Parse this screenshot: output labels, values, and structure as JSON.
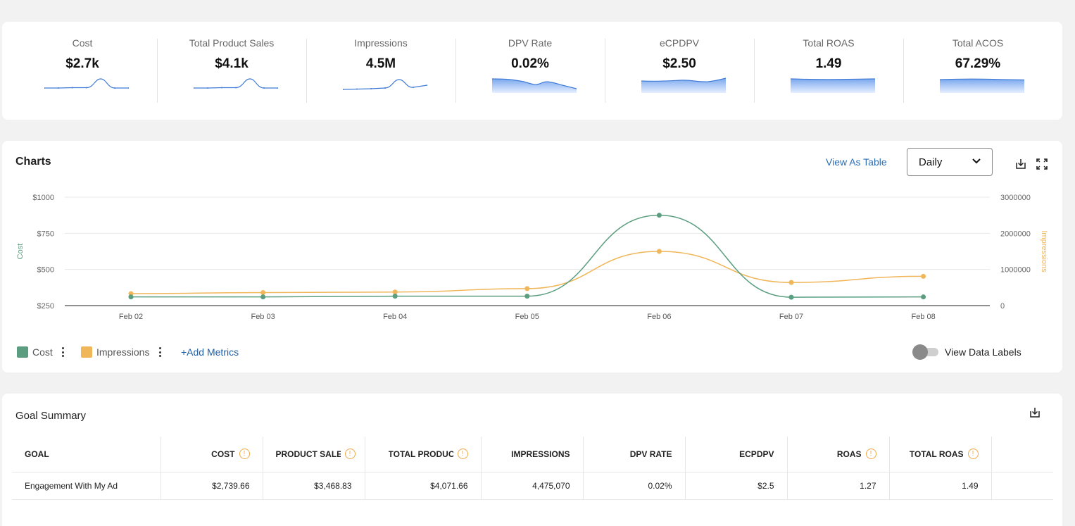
{
  "kpis": [
    {
      "label": "Cost",
      "value": "$2.7k",
      "spark": "peak"
    },
    {
      "label": "Total Product Sales",
      "value": "$4.1k",
      "spark": "peak"
    },
    {
      "label": "Impressions",
      "value": "4.5M",
      "spark": "peak"
    },
    {
      "label": "DPV Rate",
      "value": "0.02%",
      "spark": "area"
    },
    {
      "label": "eCPDPV",
      "value": "$2.50",
      "spark": "area"
    },
    {
      "label": "Total ROAS",
      "value": "1.49",
      "spark": "area"
    },
    {
      "label": "Total ACOS",
      "value": "67.29%",
      "spark": "area"
    }
  ],
  "charts": {
    "title": "Charts",
    "view_as_table": "View As Table",
    "granularity": "Daily",
    "download_icon": "download-icon",
    "expand_icon": "expand-icon",
    "legend": [
      {
        "label": "Cost",
        "color": "#5a9e7f"
      },
      {
        "label": "Impressions",
        "color": "#f0b65a"
      }
    ],
    "add_metrics": "+Add Metrics",
    "data_labels_toggle": "View Data Labels",
    "data_labels_on": false
  },
  "chart_data": {
    "type": "line",
    "x": [
      "Feb 02",
      "Feb 03",
      "Feb 04",
      "Feb 05",
      "Feb 06",
      "Feb 07",
      "Feb 08"
    ],
    "series": [
      {
        "name": "Cost",
        "axis": "left",
        "color": "#5a9e7f",
        "values": [
          310,
          310,
          315,
          315,
          875,
          308,
          310
        ]
      },
      {
        "name": "Impressions",
        "axis": "right",
        "color": "#f0b65a",
        "values": [
          330000,
          360000,
          375000,
          470000,
          1500000,
          640000,
          810000
        ]
      }
    ],
    "y_left": {
      "label": "Cost",
      "min": 250,
      "max": 1000,
      "ticks": [
        "$1000",
        "$750",
        "$500",
        "$250"
      ],
      "tick_values": [
        1000,
        750,
        500,
        250
      ]
    },
    "y_right": {
      "label": "Impressions",
      "min": 0,
      "max": 3000000,
      "ticks": [
        "3000000",
        "2000000",
        "1000000",
        "0"
      ],
      "tick_values": [
        3000000,
        2000000,
        1000000,
        0
      ]
    },
    "grid": true
  },
  "goal_summary": {
    "title": "Goal Summary",
    "download_icon": "download-icon",
    "columns": [
      {
        "label": "GOAL",
        "info": false
      },
      {
        "label": "COST",
        "info": true
      },
      {
        "label": "PRODUCT SALES",
        "info": true
      },
      {
        "label": "TOTAL PRODUCT SALES",
        "info": true
      },
      {
        "label": "IMPRESSIONS",
        "info": false
      },
      {
        "label": "DPV RATE",
        "info": false
      },
      {
        "label": "ECPDPV",
        "info": false
      },
      {
        "label": "ROAS",
        "info": true
      },
      {
        "label": "TOTAL ROAS",
        "info": true
      },
      {
        "label": "",
        "info": false
      }
    ],
    "rows": [
      [
        "Engagement With My Ad",
        "$2,739.66",
        "$3,468.83",
        "$4,071.66",
        "4,475,070",
        "0.02%",
        "$2.5",
        "1.27",
        "1.49",
        ""
      ]
    ]
  }
}
